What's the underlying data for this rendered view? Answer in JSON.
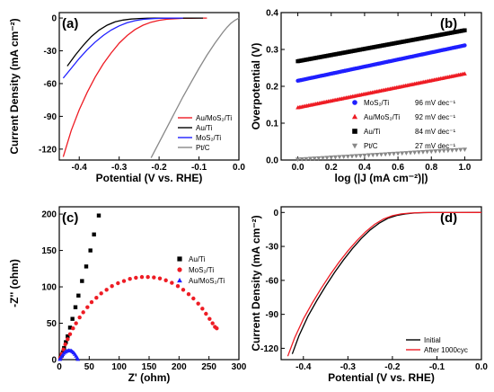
{
  "chart_data": [
    {
      "panel": "(a)",
      "type": "line",
      "xlabel": "Potential (V vs. RHE)",
      "ylabel": "Current Density (mA cm⁻²)",
      "xlim": [
        -0.45,
        0.0
      ],
      "ylim": [
        -130,
        5
      ],
      "xticks": [
        "-0.4",
        "-0.3",
        "-0.2",
        "-0.1",
        "0.0"
      ],
      "yticks": [
        "0",
        "-30",
        "-60",
        "-90",
        "-120"
      ],
      "legend_position": "bottom-right",
      "series": [
        {
          "name": "Au/MoS₂/Ti",
          "color": "#ee1c24",
          "x": [
            -0.44,
            -0.42,
            -0.4,
            -0.38,
            -0.36,
            -0.34,
            -0.32,
            -0.3,
            -0.28,
            -0.26,
            -0.24,
            -0.22,
            -0.2,
            -0.18,
            -0.16,
            -0.14,
            -0.12,
            -0.1,
            -0.08
          ],
          "y": [
            -127,
            -103,
            -84,
            -68,
            -54,
            -42,
            -32,
            -23,
            -16,
            -10.5,
            -6.5,
            -3.8,
            -2.1,
            -1.1,
            -0.6,
            -0.3,
            -0.15,
            -0.05,
            0
          ]
        },
        {
          "name": "Au/Ti",
          "color": "#000000",
          "x": [
            -0.43,
            -0.41,
            -0.39,
            -0.37,
            -0.35,
            -0.33,
            -0.31,
            -0.29,
            -0.27,
            -0.25,
            -0.23,
            -0.21,
            -0.19,
            -0.17,
            -0.15,
            -0.13,
            -0.11,
            -0.09
          ],
          "y": [
            -44,
            -34,
            -25,
            -17,
            -11,
            -6.5,
            -3.5,
            -1.8,
            -0.9,
            -0.4,
            -0.2,
            -0.1,
            -0.05,
            0,
            0,
            0,
            0,
            0
          ]
        },
        {
          "name": "MoS₂/Ti",
          "color": "#1f1fff",
          "x": [
            -0.44,
            -0.42,
            -0.4,
            -0.38,
            -0.36,
            -0.34,
            -0.32,
            -0.3,
            -0.28,
            -0.26,
            -0.24,
            -0.22,
            -0.2,
            -0.18,
            -0.16,
            -0.14
          ],
          "y": [
            -55,
            -46,
            -37,
            -29,
            -22,
            -16,
            -11,
            -7.2,
            -4.3,
            -2.4,
            -1.2,
            -0.6,
            -0.25,
            -0.1,
            -0.05,
            0
          ]
        },
        {
          "name": "Pt/C",
          "color": "#888888",
          "x": [
            -0.22,
            -0.2,
            -0.18,
            -0.16,
            -0.14,
            -0.12,
            -0.1,
            -0.08,
            -0.06,
            -0.04,
            -0.03,
            -0.02,
            -0.01,
            0.0
          ],
          "y": [
            -128,
            -114,
            -100,
            -86,
            -72,
            -59,
            -46,
            -34,
            -23,
            -13,
            -8.5,
            -4.8,
            -2,
            0
          ]
        }
      ]
    },
    {
      "panel": "(b)",
      "type": "scatter",
      "xlabel": "log (|J (mA cm⁻²)|)",
      "ylabel": "Overpotential (V)",
      "xlim": [
        -0.1,
        1.1
      ],
      "ylim": [
        0.0,
        0.4
      ],
      "xticks": [
        "0.0",
        "0.2",
        "0.4",
        "0.6",
        "0.8",
        "1.0"
      ],
      "yticks": [
        "0.0",
        "0.1",
        "0.2",
        "0.3",
        "0.4"
      ],
      "legend_position": "bottom-right",
      "series": [
        {
          "name": "MoS₂/Ti",
          "slope_label": "96 mV dec⁻¹",
          "color": "#1f1fff",
          "marker": "circle",
          "x_range": [
            0.0,
            1.0
          ],
          "y_range": [
            0.215,
            0.311
          ]
        },
        {
          "name": "Au/MoS₂/Ti",
          "slope_label": "92 mV dec⁻¹",
          "color": "#ee1c24",
          "marker": "triangle",
          "x_range": [
            0.0,
            1.0
          ],
          "y_range": [
            0.142,
            0.234
          ]
        },
        {
          "name": "Au/Ti",
          "slope_label": "84 mV dec⁻¹",
          "color": "#000000",
          "marker": "square",
          "x_range": [
            0.0,
            1.0
          ],
          "y_range": [
            0.268,
            0.352
          ]
        },
        {
          "name": "Pt/C",
          "slope_label": "27 mV dec⁻¹",
          "color": "#888888",
          "marker": "triangle-down",
          "x_range": [
            0.0,
            1.0
          ],
          "y_range": [
            0.002,
            0.029
          ]
        }
      ]
    },
    {
      "panel": "(c)",
      "type": "scatter",
      "xlabel": "Z' (ohm)",
      "ylabel": "-Z'' (ohm)",
      "xlim": [
        0,
        300
      ],
      "ylim": [
        0,
        210
      ],
      "xticks": [
        "0",
        "50",
        "100",
        "150",
        "200",
        "250",
        "300"
      ],
      "yticks": [
        "0",
        "50",
        "100",
        "150",
        "200"
      ],
      "legend_position": "right",
      "series": [
        {
          "name": "Au/Ti",
          "color": "#000000",
          "marker": "square",
          "x": [
            2,
            4,
            6,
            8,
            11,
            14,
            18,
            22,
            27,
            32,
            38,
            45,
            52,
            58,
            66
          ],
          "y": [
            2,
            6,
            10,
            16,
            24,
            32,
            44,
            56,
            72,
            88,
            108,
            128,
            150,
            172,
            198
          ]
        },
        {
          "name": "MoS₂/Ti",
          "color": "#ee1c24",
          "marker": "circle",
          "x": [
            2,
            4,
            7,
            10,
            14,
            18,
            23,
            28,
            34,
            40,
            47,
            54,
            62,
            70,
            79,
            88,
            98,
            108,
            118,
            128,
            138,
            148,
            158,
            168,
            178,
            188,
            198,
            207,
            216,
            224,
            232,
            239,
            245,
            251,
            256,
            260,
            263
          ],
          "y": [
            3,
            8,
            14,
            21,
            28,
            35,
            43,
            50,
            58,
            65,
            72,
            79,
            85,
            91,
            96,
            101,
            105,
            108,
            111,
            112.5,
            113.5,
            113.5,
            113,
            111.5,
            109,
            105.5,
            101,
            96,
            90,
            84,
            77,
            70,
            63,
            56,
            50,
            45,
            43
          ]
        },
        {
          "name": "Au/MoS₂/Ti",
          "color": "#1f1fff",
          "marker": "triangle",
          "x": [
            1,
            2,
            4,
            6,
            8,
            10,
            12,
            14,
            16,
            18,
            20,
            22,
            24,
            26,
            28,
            30,
            31
          ],
          "y": [
            0.5,
            2,
            4.5,
            7,
            9,
            10.5,
            11.5,
            12,
            12.5,
            12.3,
            12,
            11,
            9.5,
            7.5,
            5,
            2.5,
            0.5
          ]
        }
      ]
    },
    {
      "panel": "(d)",
      "type": "line",
      "xlabel": "Potential (V vs. RHE)",
      "ylabel": "Current Density (mA cm⁻²)",
      "xlim": [
        -0.45,
        0.0
      ],
      "ylim": [
        -130,
        5
      ],
      "xticks": [
        "-0.4",
        "-0.3",
        "-0.2",
        "-0.1",
        "0.0"
      ],
      "yticks": [
        "0",
        "-30",
        "-60",
        "-90",
        "-120"
      ],
      "legend_position": "bottom-right",
      "series": [
        {
          "name": "Initial",
          "color": "#000000",
          "x": [
            -0.425,
            -0.41,
            -0.39,
            -0.37,
            -0.35,
            -0.33,
            -0.31,
            -0.29,
            -0.27,
            -0.25,
            -0.23,
            -0.21,
            -0.19,
            -0.17,
            -0.15,
            -0.13,
            -0.11,
            0.0
          ],
          "y": [
            -125,
            -109,
            -92,
            -78,
            -65,
            -53,
            -42,
            -32,
            -23,
            -15.5,
            -9.5,
            -5.2,
            -2.6,
            -1.2,
            -0.5,
            -0.2,
            -0.05,
            0
          ]
        },
        {
          "name": "After 1000cyc",
          "color": "#ee1c24",
          "x": [
            -0.435,
            -0.42,
            -0.4,
            -0.38,
            -0.36,
            -0.34,
            -0.32,
            -0.3,
            -0.28,
            -0.26,
            -0.24,
            -0.22,
            -0.2,
            -0.18,
            -0.16,
            -0.14,
            -0.12,
            0.0
          ],
          "y": [
            -127,
            -111,
            -94,
            -80,
            -67,
            -55,
            -44,
            -34,
            -25,
            -17,
            -10.5,
            -5.8,
            -2.9,
            -1.3,
            -0.55,
            -0.2,
            -0.05,
            0
          ]
        }
      ]
    }
  ]
}
